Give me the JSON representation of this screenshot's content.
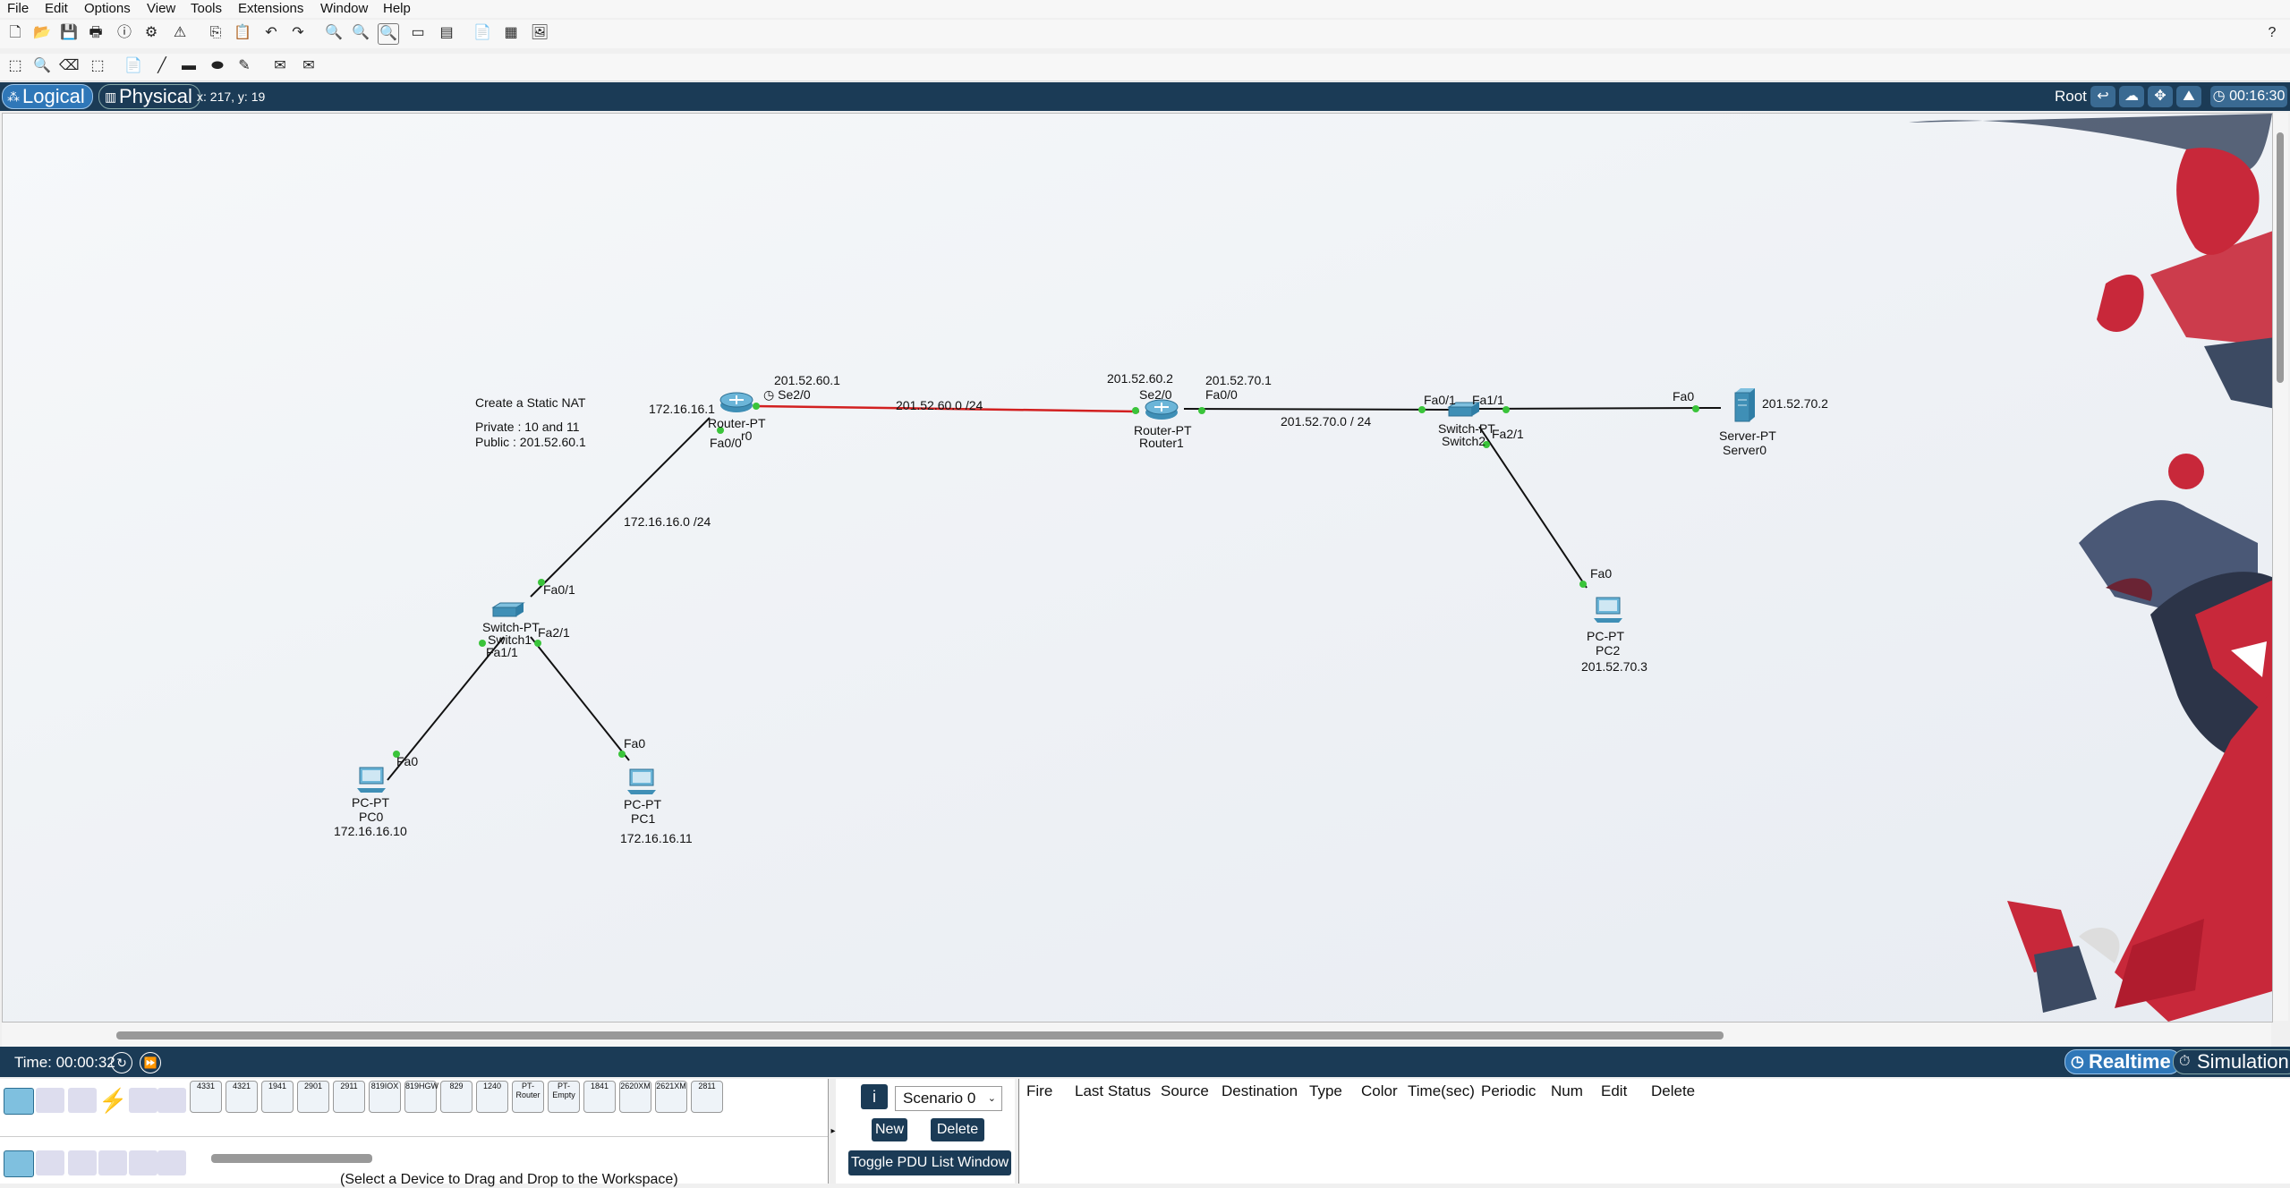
{
  "menu": [
    "File",
    "Edit",
    "Options",
    "View",
    "Tools",
    "Extensions",
    "Window",
    "Help"
  ],
  "help_mark": "?",
  "view": {
    "logical": "Logical",
    "physical": "Physical",
    "coords": "x: 217, y: 19",
    "root": "Root",
    "clock": "00:16:30"
  },
  "note": {
    "title": "Create a Static NAT",
    "private": "Private : 10 and 11",
    "public": "Public : 201.52.60.1"
  },
  "devices": {
    "router0": {
      "model": "Router-PT",
      "name": "Router0",
      "partial_name": "r0"
    },
    "router1": {
      "model": "Router-PT",
      "name": "Router1"
    },
    "switch1": {
      "model": "Switch-PT",
      "name": "Switch1"
    },
    "switch2": {
      "model": "Switch-PT",
      "name": "Switch2"
    },
    "server0": {
      "model": "Server-PT",
      "name": "Server0",
      "ip": "201.52.70.2"
    },
    "pc0": {
      "model": "PC-PT",
      "name": "PC0",
      "ip": "172.16.16.10"
    },
    "pc1": {
      "model": "PC-PT",
      "name": "PC1",
      "ip": "172.16.16.11"
    },
    "pc2": {
      "model": "PC-PT",
      "name": "PC2",
      "ip": "201.52.70.3"
    }
  },
  "labels": {
    "r0_gw": "172.16.16.1",
    "r0_se_ip": "201.52.60.1",
    "r0_se": "Se2/0",
    "r0_fa": "Fa0/0",
    "wan_net": "201.52.60.0 /24",
    "r1_se_ip": "201.52.60.2",
    "r1_se": "Se2/0",
    "r1_fa_ip": "201.52.70.1",
    "r1_fa": "Fa0/0",
    "lan2_net": "201.52.70.0 / 24",
    "s2_fa01": "Fa0/1",
    "s2_fa11": "Fa1/1",
    "s2_fa21": "Fa2/1",
    "server_fa": "Fa0",
    "pc2_fa": "Fa0",
    "lan1_net": "172.16.16.0 /24",
    "s1_fa01": "Fa0/1",
    "s1_fa21": "Fa2/1",
    "s1_fa11": "Fa1/1",
    "pc0_fa": "Fa0",
    "pc1_fa": "Fa0"
  },
  "timebar": {
    "time": "Time: 00:00:32",
    "realtime": "Realtime",
    "simulation": "Simulation"
  },
  "tray": {
    "models": [
      "4331",
      "4321",
      "1941",
      "2901",
      "2911",
      "819IOX",
      "819HGW",
      "829",
      "1240",
      "PT-Router",
      "PT-Empty",
      "1841",
      "2620XM",
      "2621XM",
      "2811"
    ],
    "hint": "(Select a Device to Drag and Drop to the Workspace)"
  },
  "scenario": {
    "info": "i",
    "select": "Scenario 0",
    "new": "New",
    "delete": "Delete",
    "toggle": "Toggle PDU List Window"
  },
  "pdu_headers": [
    "Fire",
    "Last Status",
    "Source",
    "Destination",
    "Type",
    "Color",
    "Time(sec)",
    "Periodic",
    "Num",
    "Edit",
    "Delete"
  ],
  "colors": {
    "bar": "#1b3b56",
    "active": "#2f77b8",
    "serial_link": "#d22020",
    "link": "#111111",
    "port_up": "#3ac43a"
  }
}
